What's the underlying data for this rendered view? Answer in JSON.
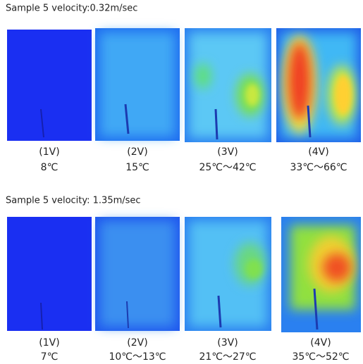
{
  "sections": [
    {
      "title": "Sample 5  velocity:0.32m/sec",
      "panels": [
        {
          "label": "(1V)",
          "temperature": "8℃"
        },
        {
          "label": "(2V)",
          "temperature": "15℃"
        },
        {
          "label": "(3V)",
          "temperature": "25℃～42℃"
        },
        {
          "label": "(4V)",
          "temperature": "33℃～66℃"
        }
      ]
    },
    {
      "title": "Sample 5 velocity: 1.35m/sec",
      "panels": [
        {
          "label": "(1V)",
          "temperature": "7℃"
        },
        {
          "label": "(2V)",
          "temperature": "10℃～13℃"
        },
        {
          "label": "(3V)",
          "temperature": "21℃～27℃"
        },
        {
          "label": "(4V)",
          "temperature": "35℃～52℃"
        }
      ]
    }
  ]
}
